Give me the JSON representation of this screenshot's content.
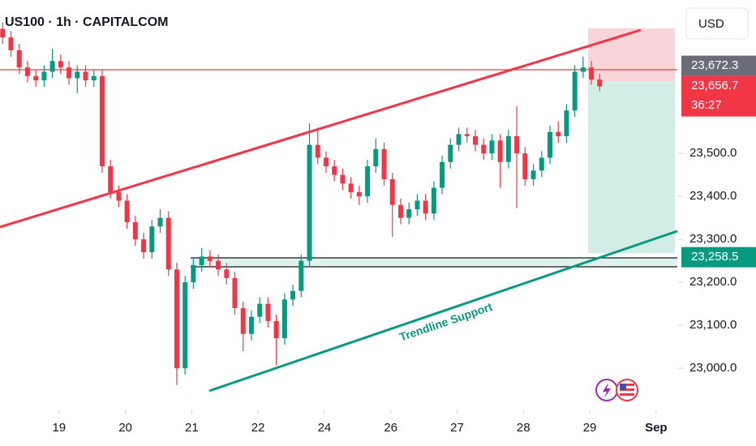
{
  "chart_data": {
    "type": "candlestick",
    "title": "US100 · 1h · CAPITALCOM",
    "currency": "USD",
    "annotation": "Trendline Support",
    "up_color": "#089981",
    "down_color": "#f23645",
    "xlim": [
      0.11,
      10.32
    ],
    "ylim": [
      22904,
      23857
    ],
    "xticks": [
      {
        "value": 1,
        "label": "19"
      },
      {
        "value": 2,
        "label": "20"
      },
      {
        "value": 3,
        "label": "21"
      },
      {
        "value": 4,
        "label": "22"
      },
      {
        "value": 5,
        "label": "24"
      },
      {
        "value": 6,
        "label": "26"
      },
      {
        "value": 7,
        "label": "27"
      },
      {
        "value": 8,
        "label": "28"
      },
      {
        "value": 9,
        "label": "29"
      },
      {
        "value": 10,
        "label": "Sep"
      }
    ],
    "yticks": [
      {
        "value": 23000,
        "label": "23,000.0"
      },
      {
        "value": 23100,
        "label": "23,100.0"
      },
      {
        "value": 23200,
        "label": "23,200.0"
      },
      {
        "value": 23300,
        "label": "23,300.0"
      },
      {
        "value": 23400,
        "label": "23,400.0"
      },
      {
        "value": 23500,
        "label": "23,500.0"
      }
    ],
    "price_markers": [
      {
        "value": 23672.3,
        "label": "23,672.3",
        "color": "#6a6d78"
      },
      {
        "value": 23656.7,
        "label": "23,656.7",
        "color": "#f23645",
        "countdown": "36:27"
      },
      {
        "value": 23258.5,
        "label": "23,258.5",
        "color": "#089981"
      }
    ],
    "x": [
      0.15,
      0.275,
      0.4,
      0.525,
      0.65,
      0.775,
      0.9,
      1.025,
      1.15,
      1.275,
      1.4,
      1.525,
      1.65,
      1.775,
      1.9,
      2.025,
      2.15,
      2.275,
      2.4,
      2.525,
      2.65,
      2.775,
      2.9,
      3.025,
      3.15,
      3.275,
      3.4,
      3.525,
      3.65,
      3.775,
      3.9,
      4.025,
      4.15,
      4.275,
      4.4,
      4.525,
      4.65,
      4.775,
      4.9,
      5.025,
      5.15,
      5.275,
      5.4,
      5.525,
      5.65,
      5.775,
      5.9,
      6.025,
      6.15,
      6.275,
      6.4,
      6.525,
      6.65,
      6.775,
      6.9,
      7.025,
      7.15,
      7.275,
      7.4,
      7.525,
      7.65,
      7.775,
      7.9,
      8.025,
      8.15,
      8.275,
      8.4,
      8.525,
      8.65,
      8.775,
      8.9,
      9.025,
      9.15
    ],
    "open": [
      23790,
      23770,
      23740,
      23700,
      23680,
      23670,
      23690,
      23715,
      23700,
      23675,
      23690,
      23670,
      23680,
      23470,
      23410,
      23390,
      23340,
      23300,
      23270,
      23330,
      23350,
      23230,
      23000,
      23200,
      23240,
      23260,
      23250,
      23230,
      23210,
      23140,
      23080,
      23120,
      23150,
      23110,
      23070,
      23160,
      23180,
      23250,
      23520,
      23490,
      23470,
      23450,
      23430,
      23410,
      23400,
      23470,
      23510,
      23440,
      23380,
      23350,
      23370,
      23390,
      23360,
      23420,
      23480,
      23520,
      23545,
      23540,
      23520,
      23500,
      23530,
      23480,
      23540,
      23500,
      23440,
      23460,
      23490,
      23550,
      23540,
      23600,
      23690,
      23700,
      23672
    ],
    "high": [
      23805,
      23785,
      23755,
      23715,
      23695,
      23705,
      23743,
      23730,
      23715,
      23705,
      23705,
      23695,
      23695,
      23485,
      23425,
      23405,
      23355,
      23315,
      23345,
      23370,
      23365,
      23245,
      23215,
      23255,
      23280,
      23275,
      23265,
      23245,
      23225,
      23155,
      23135,
      23165,
      23165,
      23125,
      23175,
      23195,
      23265,
      23570,
      23560,
      23505,
      23485,
      23465,
      23445,
      23425,
      23485,
      23535,
      23525,
      23455,
      23395,
      23385,
      23405,
      23405,
      23435,
      23495,
      23535,
      23560,
      23560,
      23555,
      23535,
      23545,
      23545,
      23555,
      23610,
      23515,
      23475,
      23505,
      23565,
      23575,
      23615,
      23705,
      23725,
      23715,
      23685
    ],
    "low": [
      23755,
      23725,
      23685,
      23665,
      23655,
      23655,
      23675,
      23685,
      23660,
      23640,
      23655,
      23655,
      23455,
      23395,
      23375,
      23325,
      23285,
      23255,
      23255,
      23315,
      23215,
      22961,
      22985,
      23185,
      23225,
      23235,
      23215,
      23195,
      23125,
      23040,
      23065,
      23105,
      23095,
      23007,
      23055,
      23145,
      23165,
      23235,
      23475,
      23455,
      23435,
      23415,
      23395,
      23380,
      23385,
      23455,
      23425,
      23306,
      23335,
      23335,
      23355,
      23345,
      23345,
      23405,
      23465,
      23505,
      23525,
      23505,
      23485,
      23485,
      23420,
      23465,
      23373,
      23425,
      23425,
      23445,
      23475,
      23525,
      23525,
      23585,
      23675,
      23660,
      23645
    ],
    "close": [
      23770,
      23740,
      23700,
      23680,
      23670,
      23690,
      23715,
      23700,
      23675,
      23690,
      23670,
      23680,
      23470,
      23410,
      23390,
      23340,
      23300,
      23270,
      23330,
      23350,
      23230,
      23000,
      23200,
      23240,
      23260,
      23250,
      23230,
      23210,
      23140,
      23080,
      23120,
      23150,
      23110,
      23070,
      23160,
      23180,
      23250,
      23520,
      23490,
      23470,
      23450,
      23430,
      23410,
      23400,
      23470,
      23510,
      23440,
      23380,
      23350,
      23370,
      23390,
      23360,
      23420,
      23480,
      23520,
      23545,
      23540,
      23520,
      23500,
      23530,
      23480,
      23540,
      23500,
      23440,
      23460,
      23490,
      23550,
      23540,
      23600,
      23690,
      23700,
      23672,
      23656
    ]
  }
}
